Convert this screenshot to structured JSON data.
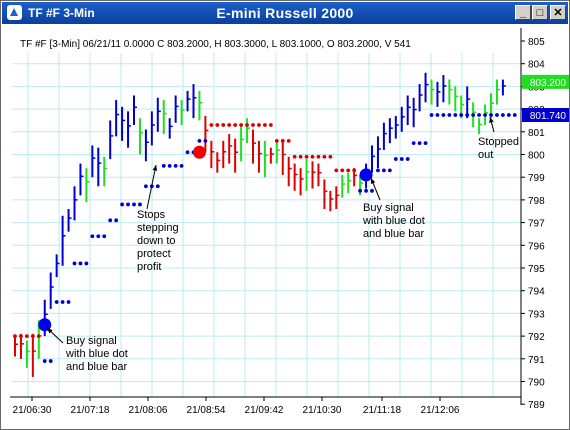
{
  "window": {
    "name": "TF #F 3-Min",
    "title": "E-mini Russell 2000",
    "buttons": {
      "minimize": "_",
      "maximize": "□",
      "close": "✕"
    }
  },
  "info_line": "TF #F [3-Min] 06/21/11  0.0000 C 803.2000, H 803.3000, L 803.1000, O 803.2000, V 541",
  "price_tags": {
    "last": {
      "text": "803.200",
      "value": 803.2,
      "color": "#22dd22"
    },
    "stop": {
      "text": "801.740",
      "value": 801.74,
      "color": "#0000cc"
    }
  },
  "colors": {
    "up_bar": "#0000cc",
    "green_bar": "#22dd22",
    "red_bar": "#dd0000",
    "grid": "#bdebf2",
    "stop_dot_blue": "#0000cc",
    "stop_dot_red": "#dd0000"
  },
  "annotations": {
    "buy1": "Buy signal\nwith blue dot\nand blue bar",
    "stops": "Stops\nstepping\ndown to\nprotect\nprofit",
    "buy2": "Buy signal\nwith blue dot\nand blue bar",
    "stopped": "Stopped\nout"
  },
  "chart_data": {
    "type": "ohlc",
    "title": "E-mini Russell 2000",
    "x_tick_labels": [
      "21/06:30",
      "21/07:18",
      "21/08:06",
      "21/08:54",
      "21/09:42",
      "21/10:30",
      "21/11:18",
      "21/12:06"
    ],
    "y_ticks": [
      789,
      790,
      791,
      792,
      793,
      794,
      795,
      796,
      797,
      798,
      799,
      800,
      801,
      802,
      803,
      804,
      805
    ],
    "ylim": [
      789,
      805
    ],
    "grid": true,
    "bars": [
      [
        792.0,
        791.1,
        "r"
      ],
      [
        792.1,
        791.0,
        "r"
      ],
      [
        791.8,
        790.6,
        "g"
      ],
      [
        792.1,
        790.2,
        "r"
      ],
      [
        792.7,
        791.0,
        "g"
      ],
      [
        793.6,
        792.0,
        "b"
      ],
      [
        794.8,
        793.2,
        "b"
      ],
      [
        795.6,
        794.6,
        "b"
      ],
      [
        797.3,
        795.1,
        "b"
      ],
      [
        797.6,
        796.6,
        "b"
      ],
      [
        798.6,
        797.1,
        "b"
      ],
      [
        799.6,
        798.2,
        "b"
      ],
      [
        799.4,
        797.9,
        "g"
      ],
      [
        800.4,
        799.0,
        "b"
      ],
      [
        800.3,
        798.6,
        "b"
      ],
      [
        799.9,
        798.6,
        "g"
      ],
      [
        801.5,
        799.8,
        "b"
      ],
      [
        802.4,
        800.8,
        "b"
      ],
      [
        802.1,
        800.6,
        "b"
      ],
      [
        801.9,
        800.3,
        "b"
      ],
      [
        802.6,
        801.3,
        "b"
      ],
      [
        801.6,
        800.0,
        "g"
      ],
      [
        801.1,
        799.7,
        "b"
      ],
      [
        801.9,
        800.4,
        "b"
      ],
      [
        802.5,
        801.0,
        "b"
      ],
      [
        802.4,
        800.9,
        "g"
      ],
      [
        801.6,
        800.7,
        "b"
      ],
      [
        802.6,
        801.4,
        "b"
      ],
      [
        802.4,
        801.3,
        "g"
      ],
      [
        802.8,
        801.9,
        "b"
      ],
      [
        803.1,
        801.6,
        "b"
      ],
      [
        802.8,
        801.5,
        "g"
      ],
      [
        801.7,
        800.1,
        "r"
      ],
      [
        800.6,
        799.4,
        "r"
      ],
      [
        800.1,
        799.2,
        "r"
      ],
      [
        800.6,
        799.4,
        "r"
      ],
      [
        800.9,
        799.6,
        "r"
      ],
      [
        800.7,
        799.2,
        "r"
      ],
      [
        801.3,
        799.7,
        "g"
      ],
      [
        801.6,
        800.5,
        "g"
      ],
      [
        801.1,
        799.6,
        "r"
      ],
      [
        800.6,
        799.2,
        "r"
      ],
      [
        800.6,
        799.0,
        "g"
      ],
      [
        800.3,
        799.6,
        "r"
      ],
      [
        800.6,
        799.6,
        "g"
      ],
      [
        800.6,
        799.1,
        "r"
      ],
      [
        799.9,
        798.6,
        "r"
      ],
      [
        799.6,
        798.4,
        "r"
      ],
      [
        799.4,
        798.2,
        "r"
      ],
      [
        799.8,
        798.4,
        "g"
      ],
      [
        799.7,
        798.5,
        "r"
      ],
      [
        799.6,
        798.6,
        "r"
      ],
      [
        798.9,
        797.6,
        "r"
      ],
      [
        798.4,
        797.5,
        "r"
      ],
      [
        798.6,
        797.6,
        "r"
      ],
      [
        799.1,
        798.1,
        "g"
      ],
      [
        799.2,
        798.3,
        "g"
      ],
      [
        799.4,
        798.6,
        "r"
      ],
      [
        799.1,
        798.2,
        "g"
      ],
      [
        799.6,
        798.5,
        "b"
      ],
      [
        800.4,
        799.2,
        "b"
      ],
      [
        800.8,
        799.4,
        "b"
      ],
      [
        801.4,
        800.2,
        "b"
      ],
      [
        801.6,
        800.5,
        "b"
      ],
      [
        801.7,
        800.7,
        "b"
      ],
      [
        802.1,
        801.0,
        "b"
      ],
      [
        802.6,
        801.3,
        "b"
      ],
      [
        802.5,
        801.2,
        "b"
      ],
      [
        803.1,
        801.9,
        "b"
      ],
      [
        803.6,
        802.3,
        "b"
      ],
      [
        803.3,
        802.2,
        "g"
      ],
      [
        803.2,
        802.1,
        "b"
      ],
      [
        803.5,
        802.3,
        "b"
      ],
      [
        803.3,
        802.2,
        "g"
      ],
      [
        803.0,
        801.9,
        "g"
      ],
      [
        802.6,
        801.6,
        "g"
      ],
      [
        803.0,
        801.6,
        "b"
      ],
      [
        802.3,
        801.2,
        "g"
      ],
      [
        801.6,
        800.9,
        "g"
      ],
      [
        802.2,
        801.3,
        "g"
      ],
      [
        802.7,
        801.6,
        "g"
      ],
      [
        803.3,
        802.2,
        "g"
      ],
      [
        803.3,
        802.6,
        "b"
      ]
    ],
    "stop_dots": [
      {
        "start": 0,
        "end": 4,
        "value": 792.0,
        "color": "r"
      },
      {
        "start": 5,
        "end": 6,
        "value": 790.9,
        "color": "b"
      },
      {
        "start": 7,
        "end": 9,
        "value": 793.5,
        "color": "b"
      },
      {
        "start": 10,
        "end": 12,
        "value": 795.2,
        "color": "b"
      },
      {
        "start": 13,
        "end": 15,
        "value": 796.4,
        "color": "b"
      },
      {
        "start": 16,
        "end": 17,
        "value": 797.1,
        "color": "b"
      },
      {
        "start": 18,
        "end": 21,
        "value": 797.8,
        "color": "b"
      },
      {
        "start": 22,
        "end": 24,
        "value": 798.6,
        "color": "b"
      },
      {
        "start": 25,
        "end": 28,
        "value": 799.5,
        "color": "b"
      },
      {
        "start": 29,
        "end": 30,
        "value": 800.1,
        "color": "b"
      },
      {
        "start": 31,
        "end": 32,
        "value": 800.6,
        "color": "b"
      },
      {
        "start": 33,
        "end": 43,
        "value": 801.3,
        "color": "r"
      },
      {
        "start": 44,
        "end": 46,
        "value": 800.6,
        "color": "r"
      },
      {
        "start": 47,
        "end": 53,
        "value": 799.9,
        "color": "r"
      },
      {
        "start": 54,
        "end": 57,
        "value": 799.3,
        "color": "r"
      },
      {
        "start": 58,
        "end": 60,
        "value": 798.4,
        "color": "b"
      },
      {
        "start": 61,
        "end": 63,
        "value": 799.3,
        "color": "b"
      },
      {
        "start": 64,
        "end": 66,
        "value": 799.8,
        "color": "b"
      },
      {
        "start": 67,
        "end": 69,
        "value": 800.5,
        "color": "b"
      },
      {
        "start": 70,
        "end": 84,
        "value": 801.74,
        "color": "b"
      }
    ],
    "signal_dots": [
      {
        "bar": 5,
        "value": 792.5,
        "color": "#0000ee"
      },
      {
        "bar": 31,
        "value": 800.1,
        "color": "#ee0000"
      },
      {
        "bar": 59,
        "value": 799.1,
        "color": "#0000ee"
      }
    ]
  }
}
